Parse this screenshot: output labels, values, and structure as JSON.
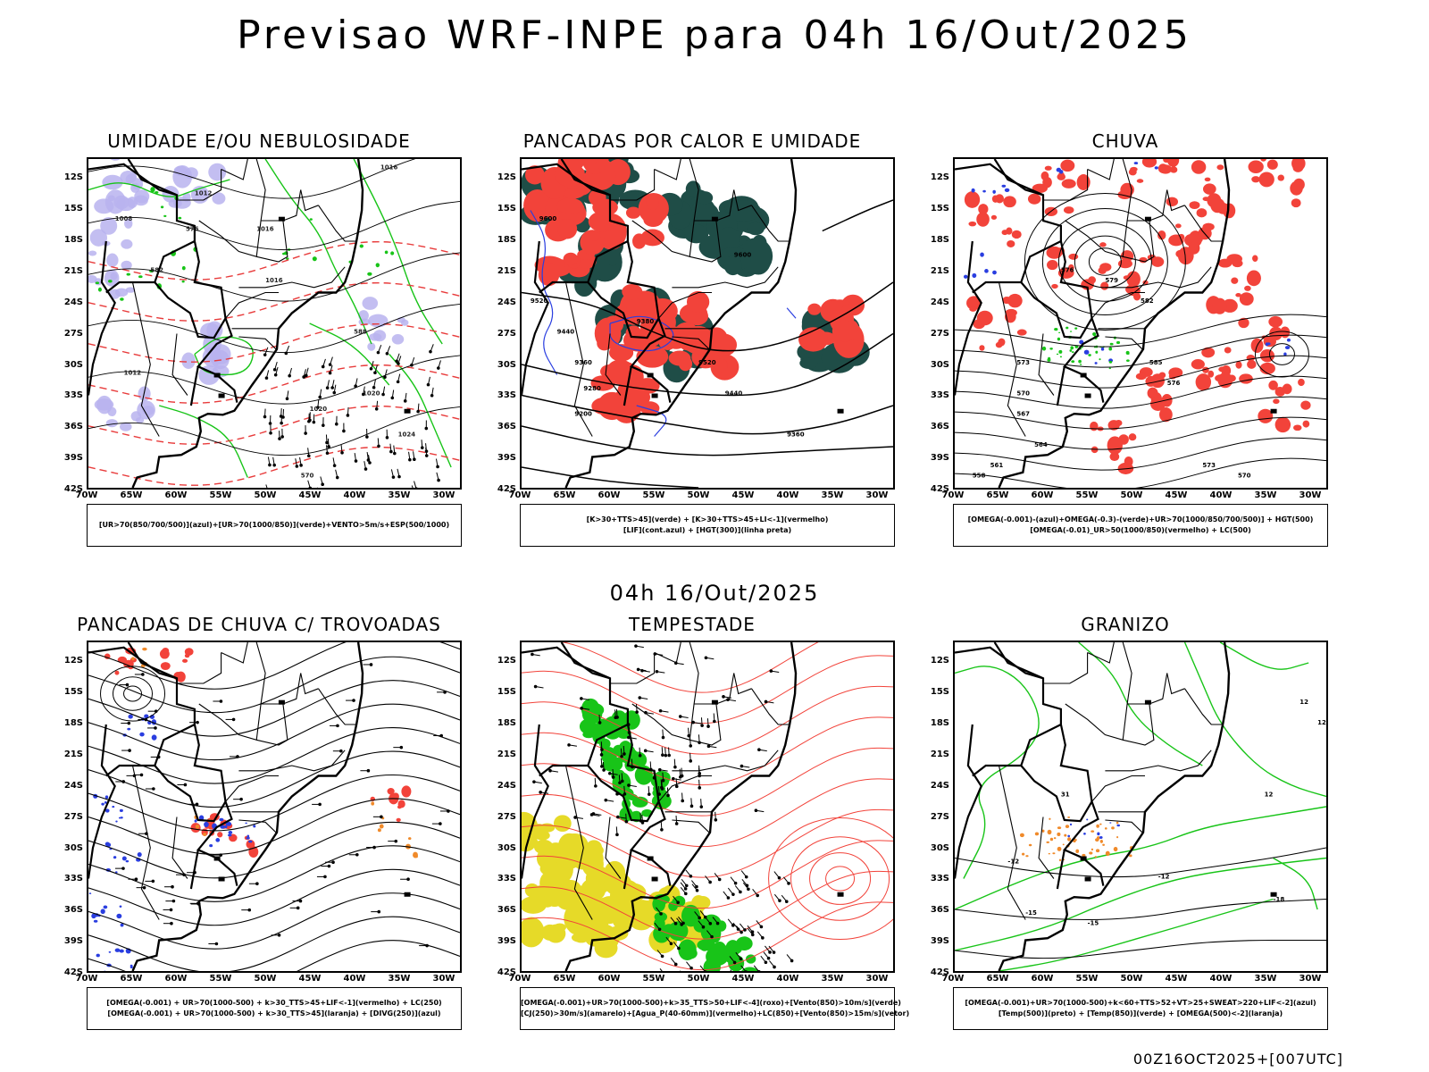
{
  "header": {
    "title": "Previsao WRF-INPE  para 04h 16/Out/2025"
  },
  "subtitle": "04h 16/Out/2025",
  "footer": "00Z16OCT2025+[007UTC]",
  "axes": {
    "lat_labels": [
      "12S",
      "15S",
      "18S",
      "21S",
      "24S",
      "27S",
      "30S",
      "33S",
      "36S",
      "39S",
      "42S"
    ],
    "lon_labels": [
      "70W",
      "65W",
      "60W",
      "55W",
      "50W",
      "45W",
      "40W",
      "35W",
      "30W"
    ]
  },
  "colors": {
    "panel_red": "#f2433a",
    "panel_green": "#18c418",
    "panel_blue": "#2a3ee0",
    "panel_lavender": "#b9b3ef",
    "panel_darkteal": "#1f4d47",
    "panel_yellow": "#e6da28",
    "panel_orange": "#f08a2a",
    "map_line": "#000000"
  },
  "panels": [
    {
      "title": "UMIDADE E/OU NEBULOSIDADE",
      "legend": [
        "[UR>70(850/700/500)](azul)+[UR>70(1000/850)](verde)+VENTO>5m/s+ESP(500/1000)"
      ],
      "contour_labels": [
        "1012",
        "1008",
        "1016",
        "1016",
        "1020",
        "1024",
        "1016",
        "1020",
        "1012",
        "576",
        "582",
        "588",
        "570"
      ]
    },
    {
      "title": "PANCADAS POR CALOR E UMIDADE",
      "legend": [
        "[K>30+TTS>45](verde) + [K>30+TTS>45+LI<-1](vermelho)",
        "[LIF](cont.azul) + [HGT(300)](linha preta)"
      ],
      "contour_labels": [
        "9600",
        "9520",
        "9440",
        "9360",
        "9280",
        "9200",
        "9380",
        "9600",
        "9520",
        "9440",
        "9360"
      ]
    },
    {
      "title": "CHUVA",
      "legend": [
        "[OMEGA(-0.001)-(azul)+OMEGA(-0.3)-(verde)+UR>70(1000/850/700/500)] + HGT(500)",
        "[OMEGA(-0.01)_UR>50(1000/850)(vermelho) + LC(500)"
      ],
      "contour_labels": [
        "576",
        "579",
        "582",
        "585",
        "573",
        "570",
        "567",
        "564",
        "561",
        "558",
        "576",
        "573",
        "570"
      ]
    },
    {
      "title": "PANCADAS DE CHUVA C/ TROVOADAS",
      "legend": [
        "[OMEGA(-0.001) + UR>70(1000-500) + k>30_TTS>45+LIF<-1](vermelho) + LC(250)",
        "[OMEGA(-0.001) + UR>70(1000-500) + k>30_TTS>45](laranja) + [DIVG(250)](azul)"
      ],
      "contour_labels": []
    },
    {
      "title": "TEMPESTADE",
      "legend": [
        "[OMEGA(-0.001)+UR>70(1000-500)+k>35_TTS>50+LIF<-4](roxo)+[Vento(850)>10m/s](verde)",
        "[CJ(250)>30m/s](amarelo)+[Agua_P(40-60mm)](vermelho)+LC(850)+[Vento(850)>15m/s](vetor)"
      ],
      "contour_labels": []
    },
    {
      "title": "GRANIZO",
      "legend": [
        "[OMEGA(-0.001)+UR>70(1000-500)+k<60+TTS>52+VT>25+SWEAT>220+LIF<-2](azul)",
        "[Temp(500)](preto) + [Temp(850)](verde) + [OMEGA(500)<-2](laranja)"
      ],
      "contour_labels": [
        "12",
        "12",
        "-12",
        "-12",
        "-18",
        "-15",
        "-15",
        "12",
        "31"
      ]
    }
  ]
}
